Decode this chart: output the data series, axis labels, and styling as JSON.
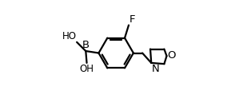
{
  "background_color": "#ffffff",
  "line_color": "#000000",
  "line_width": 1.6,
  "font_size": 8.5,
  "figsize": [
    3.04,
    1.38
  ],
  "dpi": 100,
  "xlim": [
    -0.15,
    1.02
  ],
  "ylim": [
    -0.05,
    1.05
  ]
}
